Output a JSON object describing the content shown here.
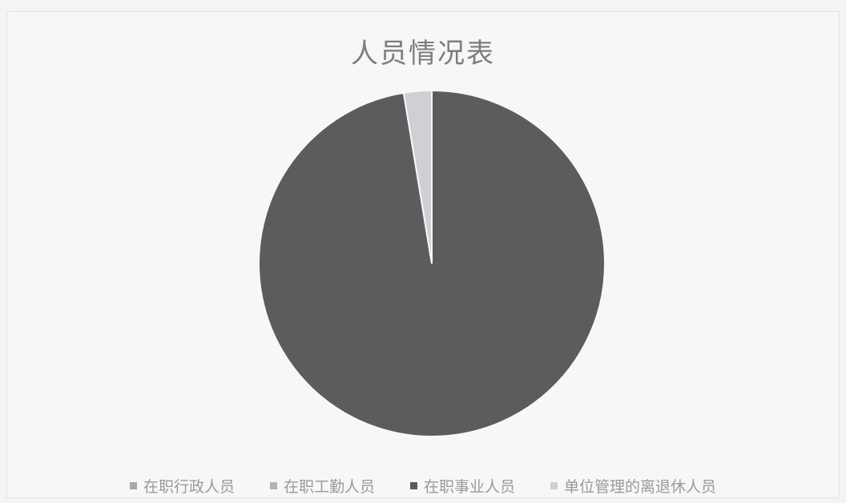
{
  "chart_data": {
    "type": "pie",
    "title": "人员情况表",
    "categories": [
      "在职行政人员",
      "在职工勤人员",
      "在职事业人员",
      "单位管理的离退休人员"
    ],
    "values": [
      0.0,
      0.0,
      97.4,
      2.6
    ],
    "colors": [
      "#a9a9a9",
      "#b3b3b3",
      "#5c5c5e",
      "#cfcfd4"
    ],
    "legend_position": "bottom"
  }
}
